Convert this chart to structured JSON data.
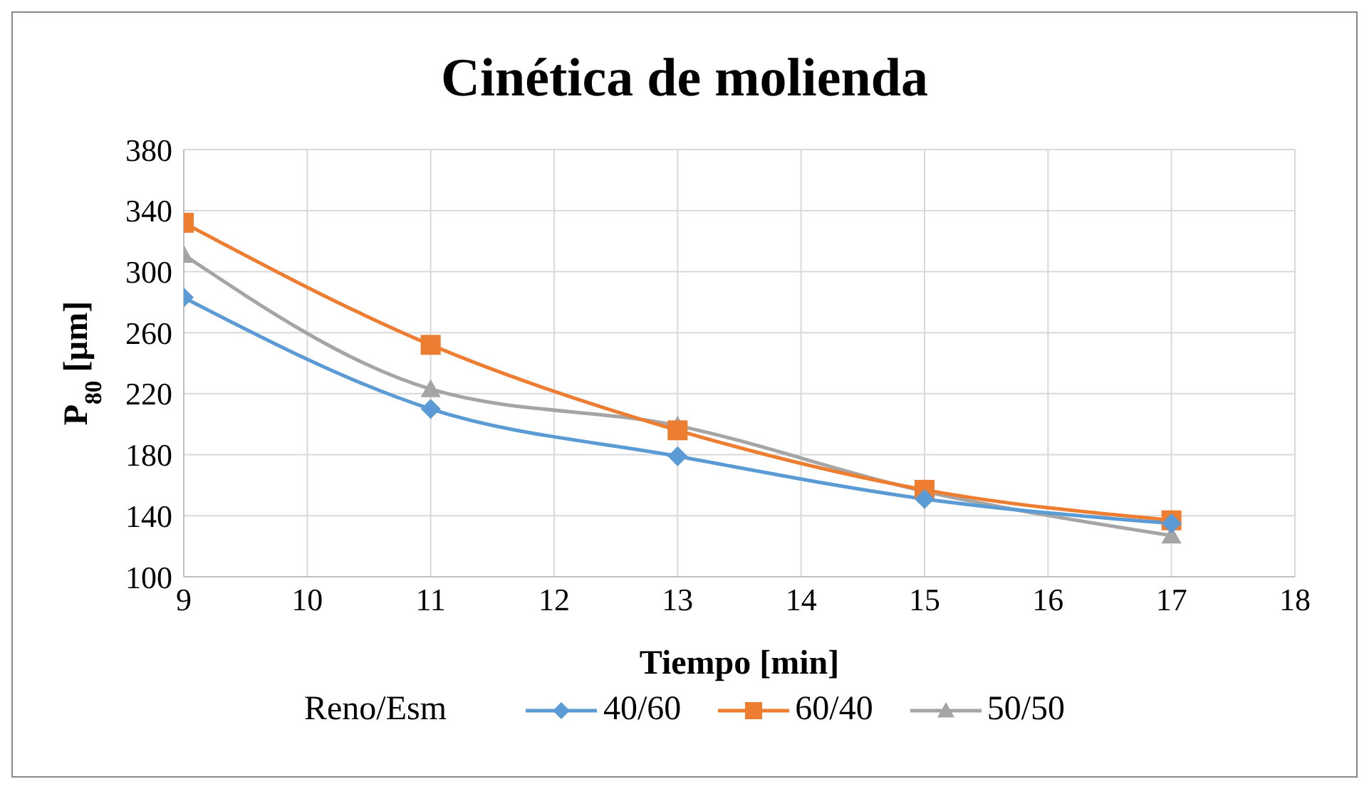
{
  "chart_data": {
    "type": "line",
    "title": "Cinética de molienda",
    "xlabel": "Tiempo [min]",
    "ylabel": "P$_{80}$ [µm]",
    "legend_title": "Reno/Esm",
    "x": [
      9,
      11,
      13,
      15,
      17
    ],
    "series": [
      {
        "name": "40/60",
        "color": "#5b9bd5",
        "marker": "diamond",
        "values": [
          283,
          210,
          179,
          151,
          135
        ]
      },
      {
        "name": "60/40",
        "color": "#ed7d31",
        "marker": "square",
        "values": [
          332,
          252,
          196,
          157,
          137
        ]
      },
      {
        "name": "50/50",
        "color": "#a5a5a5",
        "marker": "triangle",
        "values": [
          311,
          223,
          199,
          156,
          127
        ]
      }
    ],
    "xlim": [
      9,
      18
    ],
    "xticks": [
      9,
      10,
      11,
      12,
      13,
      14,
      15,
      16,
      17,
      18
    ],
    "ylim": [
      100,
      380
    ],
    "yticks": [
      100,
      140,
      180,
      220,
      260,
      300,
      340,
      380
    ],
    "grid": true,
    "legend": "bottom",
    "line_style": "solid"
  }
}
